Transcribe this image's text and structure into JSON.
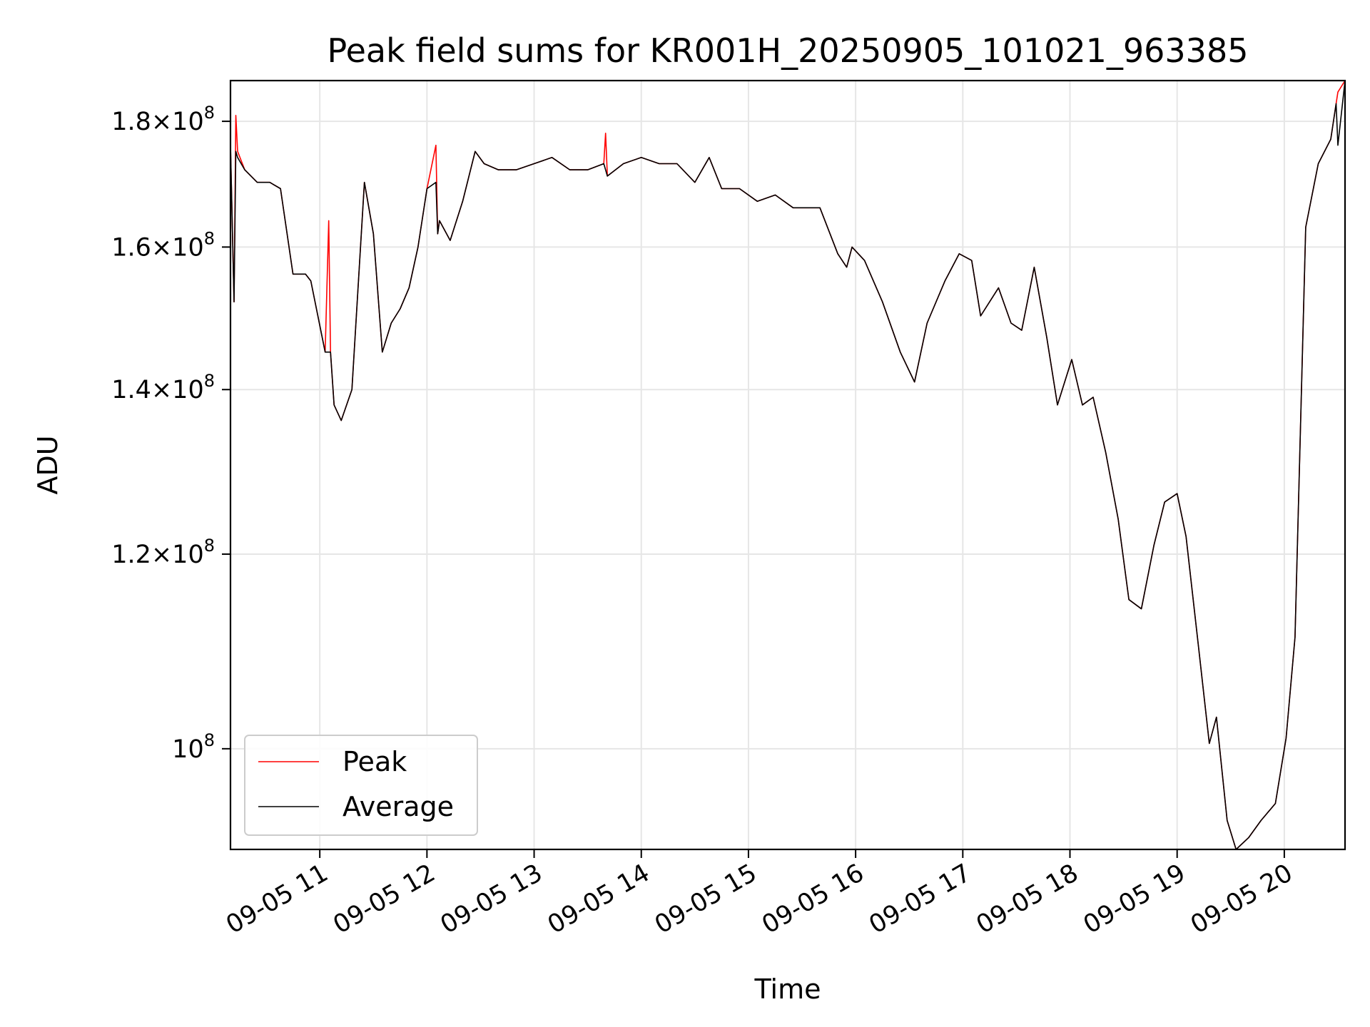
{
  "chart_data": {
    "type": "line",
    "title": "Peak field sums for KR001H_20250905_101021_963385",
    "xlabel": "Time",
    "ylabel": "ADU",
    "y_scale": "log",
    "ylim": [
      91000000,
      187000000
    ],
    "xlim": [
      "2025-09-05 10:10",
      "2025-09-05 20:34"
    ],
    "grid": true,
    "legend_position": "lower-left",
    "x_ticks": [
      {
        "value": "2025-09-05 11:00",
        "label": "09-05 11"
      },
      {
        "value": "2025-09-05 12:00",
        "label": "09-05 12"
      },
      {
        "value": "2025-09-05 13:00",
        "label": "09-05 13"
      },
      {
        "value": "2025-09-05 14:00",
        "label": "09-05 14"
      },
      {
        "value": "2025-09-05 15:00",
        "label": "09-05 15"
      },
      {
        "value": "2025-09-05 16:00",
        "label": "09-05 16"
      },
      {
        "value": "2025-09-05 17:00",
        "label": "09-05 17"
      },
      {
        "value": "2025-09-05 18:00",
        "label": "09-05 18"
      },
      {
        "value": "2025-09-05 19:00",
        "label": "09-05 19"
      },
      {
        "value": "2025-09-05 20:00",
        "label": "09-05 20"
      }
    ],
    "y_ticks": [
      {
        "value": 100000000,
        "mantissa": "",
        "exp": "8"
      },
      {
        "value": 120000000,
        "mantissa": "1.2",
        "exp": "8"
      },
      {
        "value": 140000000,
        "mantissa": "1.4",
        "exp": "8"
      },
      {
        "value": 160000000,
        "mantissa": "1.6",
        "exp": "8"
      },
      {
        "value": 180000000,
        "mantissa": "1.8",
        "exp": "8"
      }
    ],
    "series": [
      {
        "name": "Peak",
        "color": "#ff0000",
        "x": [
          "2025-09-05 10:10",
          "2025-09-05 10:12",
          "2025-09-05 10:13",
          "2025-09-05 10:14",
          "2025-09-05 10:18",
          "2025-09-05 10:25",
          "2025-09-05 10:32",
          "2025-09-05 10:38",
          "2025-09-05 10:45",
          "2025-09-05 10:52",
          "2025-09-05 10:55",
          "2025-09-05 11:03",
          "2025-09-05 11:05",
          "2025-09-05 11:06",
          "2025-09-05 11:08",
          "2025-09-05 11:12",
          "2025-09-05 11:18",
          "2025-09-05 11:25",
          "2025-09-05 11:30",
          "2025-09-05 11:35",
          "2025-09-05 11:40",
          "2025-09-05 11:45",
          "2025-09-05 11:50",
          "2025-09-05 11:55",
          "2025-09-05 12:00",
          "2025-09-05 12:05",
          "2025-09-05 12:06",
          "2025-09-05 12:07",
          "2025-09-05 12:13",
          "2025-09-05 12:20",
          "2025-09-05 12:27",
          "2025-09-05 12:32",
          "2025-09-05 12:40",
          "2025-09-05 12:50",
          "2025-09-05 13:00",
          "2025-09-05 13:10",
          "2025-09-05 13:20",
          "2025-09-05 13:30",
          "2025-09-05 13:39",
          "2025-09-05 13:40",
          "2025-09-05 13:41",
          "2025-09-05 13:50",
          "2025-09-05 14:00",
          "2025-09-05 14:10",
          "2025-09-05 14:20",
          "2025-09-05 14:30",
          "2025-09-05 14:38",
          "2025-09-05 14:45",
          "2025-09-05 14:55",
          "2025-09-05 15:05",
          "2025-09-05 15:15",
          "2025-09-05 15:25",
          "2025-09-05 15:40",
          "2025-09-05 15:50",
          "2025-09-05 15:55",
          "2025-09-05 15:58",
          "2025-09-05 16:05",
          "2025-09-05 16:15",
          "2025-09-05 16:25",
          "2025-09-05 16:33",
          "2025-09-05 16:40",
          "2025-09-05 16:50",
          "2025-09-05 16:58",
          "2025-09-05 17:05",
          "2025-09-05 17:10",
          "2025-09-05 17:20",
          "2025-09-05 17:27",
          "2025-09-05 17:33",
          "2025-09-05 17:40",
          "2025-09-05 17:47",
          "2025-09-05 17:53",
          "2025-09-05 18:01",
          "2025-09-05 18:07",
          "2025-09-05 18:13",
          "2025-09-05 18:20",
          "2025-09-05 18:27",
          "2025-09-05 18:33",
          "2025-09-05 18:40",
          "2025-09-05 18:47",
          "2025-09-05 18:53",
          "2025-09-05 19:00",
          "2025-09-05 19:05",
          "2025-09-05 19:12",
          "2025-09-05 19:18",
          "2025-09-05 19:22",
          "2025-09-05 19:28",
          "2025-09-05 19:33",
          "2025-09-05 19:40",
          "2025-09-05 19:47",
          "2025-09-05 19:55",
          "2025-09-05 20:01",
          "2025-09-05 20:06",
          "2025-09-05 20:12",
          "2025-09-05 20:19",
          "2025-09-05 20:26",
          "2025-09-05 20:29",
          "2025-09-05 20:30",
          "2025-09-05 20:34"
        ],
        "y": [
          176000000,
          152000000,
          181000000,
          175000000,
          172000000,
          170000000,
          170000000,
          169000000,
          156000000,
          156000000,
          155000000,
          145000000,
          164000000,
          145000000,
          138000000,
          136000000,
          140000000,
          170000000,
          162000000,
          145000000,
          149000000,
          151000000,
          154000000,
          160000000,
          169000000,
          176000000,
          162000000,
          164000000,
          161000000,
          167000000,
          175000000,
          173000000,
          172000000,
          172000000,
          173000000,
          174000000,
          172000000,
          172000000,
          173000000,
          178000000,
          171000000,
          173000000,
          174000000,
          173000000,
          173000000,
          170000000,
          174000000,
          169000000,
          169000000,
          167000000,
          168000000,
          166000000,
          166000000,
          159000000,
          157000000,
          160000000,
          158000000,
          152000000,
          145000000,
          141000000,
          149000000,
          155000000,
          159000000,
          158000000,
          150000000,
          154000000,
          149000000,
          148000000,
          157000000,
          147000000,
          138000000,
          144000000,
          138000000,
          139000000,
          132000000,
          124000000,
          115000000,
          114000000,
          121000000,
          126000000,
          127000000,
          122000000,
          110000000,
          100500000,
          103000000,
          93500000,
          91000000,
          92000000,
          93500000,
          95000000,
          101000000,
          111000000,
          163000000,
          173000000,
          177000000,
          183000000,
          185000000,
          187000000
        ]
      },
      {
        "name": "Average",
        "color": "#000000",
        "x": [
          "2025-09-05 10:10",
          "2025-09-05 10:12",
          "2025-09-05 10:13",
          "2025-09-05 10:14",
          "2025-09-05 10:18",
          "2025-09-05 10:25",
          "2025-09-05 10:32",
          "2025-09-05 10:38",
          "2025-09-05 10:45",
          "2025-09-05 10:52",
          "2025-09-05 10:55",
          "2025-09-05 11:03",
          "2025-09-05 11:05",
          "2025-09-05 11:06",
          "2025-09-05 11:08",
          "2025-09-05 11:12",
          "2025-09-05 11:18",
          "2025-09-05 11:25",
          "2025-09-05 11:30",
          "2025-09-05 11:35",
          "2025-09-05 11:40",
          "2025-09-05 11:45",
          "2025-09-05 11:50",
          "2025-09-05 11:55",
          "2025-09-05 12:00",
          "2025-09-05 12:05",
          "2025-09-05 12:06",
          "2025-09-05 12:07",
          "2025-09-05 12:13",
          "2025-09-05 12:20",
          "2025-09-05 12:27",
          "2025-09-05 12:32",
          "2025-09-05 12:40",
          "2025-09-05 12:50",
          "2025-09-05 13:00",
          "2025-09-05 13:10",
          "2025-09-05 13:20",
          "2025-09-05 13:30",
          "2025-09-05 13:39",
          "2025-09-05 13:40",
          "2025-09-05 13:41",
          "2025-09-05 13:50",
          "2025-09-05 14:00",
          "2025-09-05 14:10",
          "2025-09-05 14:20",
          "2025-09-05 14:30",
          "2025-09-05 14:38",
          "2025-09-05 14:45",
          "2025-09-05 14:55",
          "2025-09-05 15:05",
          "2025-09-05 15:15",
          "2025-09-05 15:25",
          "2025-09-05 15:40",
          "2025-09-05 15:50",
          "2025-09-05 15:55",
          "2025-09-05 15:58",
          "2025-09-05 16:05",
          "2025-09-05 16:15",
          "2025-09-05 16:25",
          "2025-09-05 16:33",
          "2025-09-05 16:40",
          "2025-09-05 16:50",
          "2025-09-05 16:58",
          "2025-09-05 17:05",
          "2025-09-05 17:10",
          "2025-09-05 17:20",
          "2025-09-05 17:27",
          "2025-09-05 17:33",
          "2025-09-05 17:40",
          "2025-09-05 17:47",
          "2025-09-05 17:53",
          "2025-09-05 18:01",
          "2025-09-05 18:07",
          "2025-09-05 18:13",
          "2025-09-05 18:20",
          "2025-09-05 18:27",
          "2025-09-05 18:33",
          "2025-09-05 18:40",
          "2025-09-05 18:47",
          "2025-09-05 18:53",
          "2025-09-05 19:00",
          "2025-09-05 19:05",
          "2025-09-05 19:12",
          "2025-09-05 19:18",
          "2025-09-05 19:22",
          "2025-09-05 19:28",
          "2025-09-05 19:33",
          "2025-09-05 19:40",
          "2025-09-05 19:47",
          "2025-09-05 19:55",
          "2025-09-05 20:01",
          "2025-09-05 20:06",
          "2025-09-05 20:12",
          "2025-09-05 20:19",
          "2025-09-05 20:26",
          "2025-09-05 20:29",
          "2025-09-05 20:30",
          "2025-09-05 20:34"
        ],
        "y": [
          176000000,
          152000000,
          175000000,
          174000000,
          172000000,
          170000000,
          170000000,
          169000000,
          156000000,
          156000000,
          155000000,
          145000000,
          145000000,
          145000000,
          138000000,
          136000000,
          140000000,
          170000000,
          162000000,
          145000000,
          149000000,
          151000000,
          154000000,
          160000000,
          169000000,
          170000000,
          162000000,
          164000000,
          161000000,
          167000000,
          175000000,
          173000000,
          172000000,
          172000000,
          173000000,
          174000000,
          172000000,
          172000000,
          173000000,
          172000000,
          171000000,
          173000000,
          174000000,
          173000000,
          173000000,
          170000000,
          174000000,
          169000000,
          169000000,
          167000000,
          168000000,
          166000000,
          166000000,
          159000000,
          157000000,
          160000000,
          158000000,
          152000000,
          145000000,
          141000000,
          149000000,
          155000000,
          159000000,
          158000000,
          150000000,
          154000000,
          149000000,
          148000000,
          157000000,
          147000000,
          138000000,
          144000000,
          138000000,
          139000000,
          132000000,
          124000000,
          115000000,
          114000000,
          121000000,
          126000000,
          127000000,
          122000000,
          110000000,
          100500000,
          103000000,
          93500000,
          91000000,
          92000000,
          93500000,
          95000000,
          101000000,
          111000000,
          163000000,
          173000000,
          177000000,
          183000000,
          176000000,
          187000000
        ]
      }
    ]
  }
}
